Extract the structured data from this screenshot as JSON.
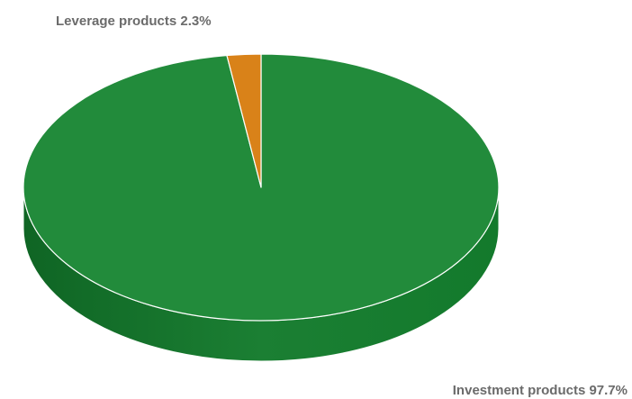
{
  "chart_data": {
    "type": "pie",
    "style": "3d",
    "slices": [
      {
        "label": "Investment products",
        "value": 97.7,
        "display": "Investment products 97.7%",
        "color": "#228B3B",
        "side_color": "#14702A"
      },
      {
        "label": "Leverage products",
        "value": 2.3,
        "display": "Leverage products 2.3%",
        "color": "#D98219",
        "side_color": "#A8600F"
      }
    ],
    "legend": "none"
  }
}
